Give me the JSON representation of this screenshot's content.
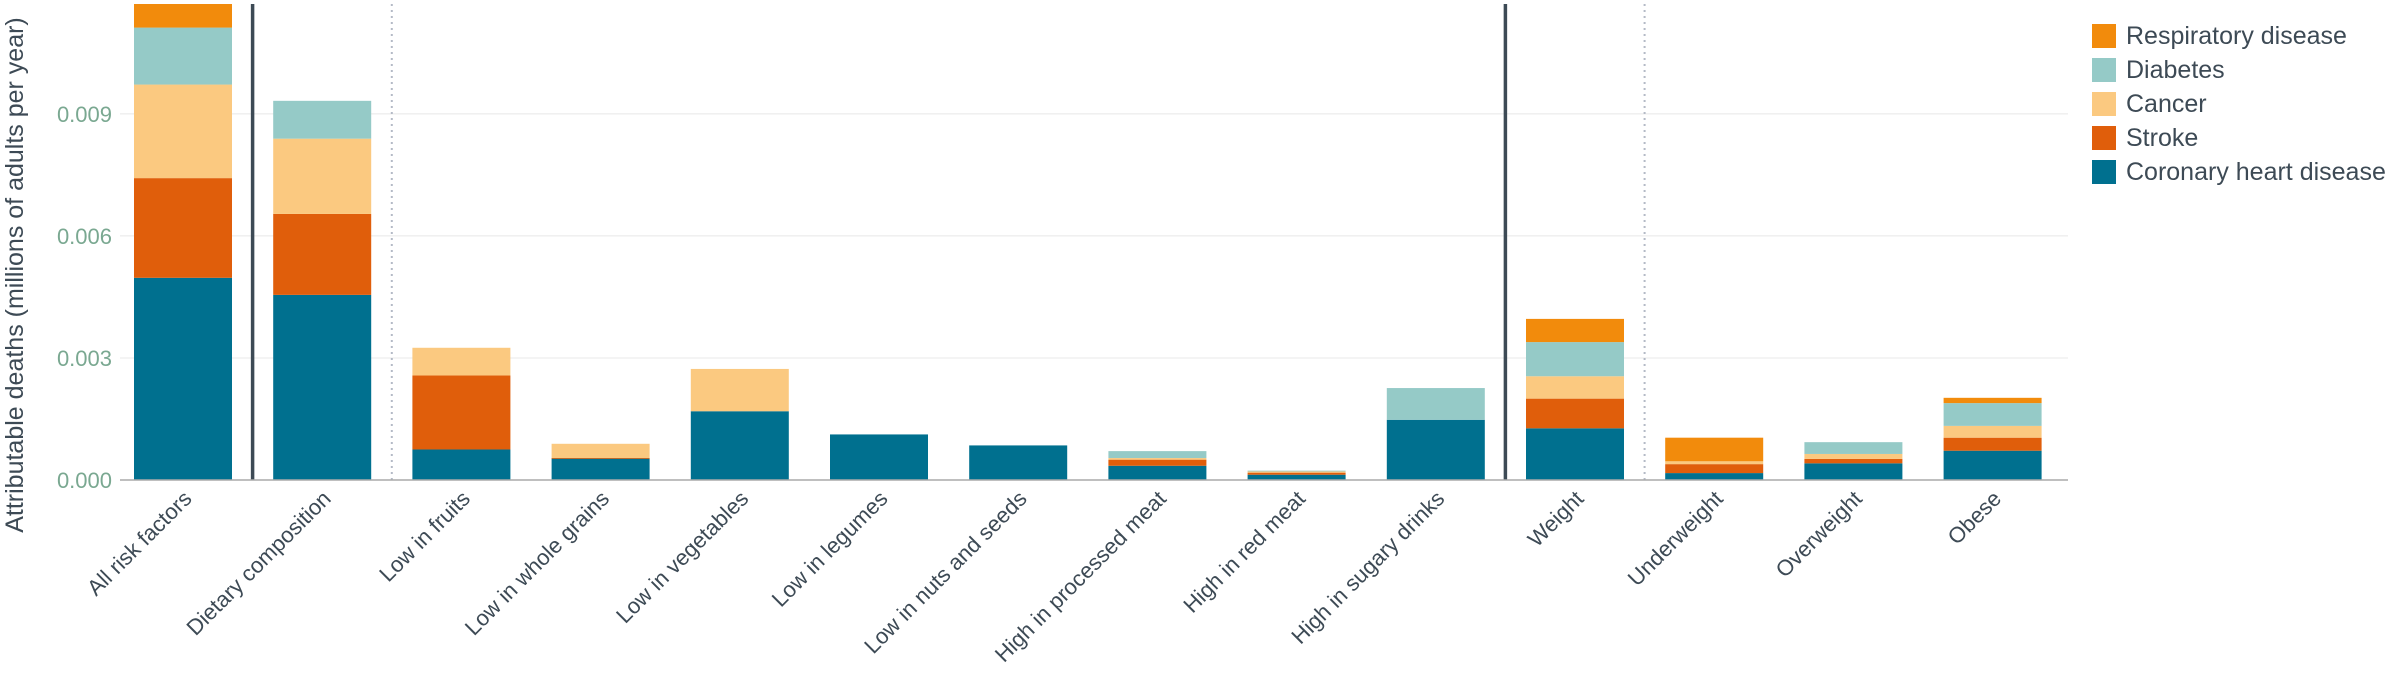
{
  "chart_data": {
    "type": "bar",
    "stacked": true,
    "title": "",
    "xlabel": "",
    "ylabel": "Attributable deaths (millions of adults per year)",
    "ylim": [
      0,
      0.0117
    ],
    "yticks": [
      "0.000",
      "0.003",
      "0.006",
      "0.009"
    ],
    "ytick_values": [
      0,
      0.003,
      0.006,
      0.009
    ],
    "grid": true,
    "legend_position": "top-right",
    "categories": [
      "All risk factors",
      "Dietary composition",
      "Low in fruits",
      "Low in whole grains",
      "Low in vegetables",
      "Low in legumes",
      "Low in nuts and seeds",
      "High in processed meat",
      "High in red meat",
      "High in sugary drinks",
      "Weight",
      "Underweight",
      "Overweight",
      "Obese"
    ],
    "separators": [
      {
        "after_index": 0,
        "style": "solid"
      },
      {
        "after_index": 1,
        "style": "dotted"
      },
      {
        "after_index": 9,
        "style": "solid"
      },
      {
        "after_index": 10,
        "style": "dotted"
      }
    ],
    "series": [
      {
        "name": "Coronary heart disease",
        "color": "#00708f",
        "values": [
          0.00497,
          0.00455,
          0.00075,
          0.00053,
          0.00169,
          0.00112,
          0.00085,
          0.00035,
          0.00013,
          0.00148,
          0.00127,
          0.00017,
          0.00041,
          0.00072
        ]
      },
      {
        "name": "Stroke",
        "color": "#e05e0b",
        "values": [
          0.00245,
          0.00199,
          0.00182,
          1e-05,
          0.0,
          0.0,
          0.0,
          0.00015,
          5e-05,
          0.0,
          0.00073,
          0.00022,
          0.00011,
          0.00032
        ]
      },
      {
        "name": "Cancer",
        "color": "#fbc980",
        "values": [
          0.0023,
          0.00185,
          0.00068,
          0.00035,
          0.00104,
          0.0,
          0.0,
          4e-05,
          3e-05,
          0.0,
          0.00055,
          7e-05,
          0.00012,
          0.00029
        ]
      },
      {
        "name": "Diabetes",
        "color": "#95cac7",
        "values": [
          0.0014,
          0.00093,
          0.0,
          0.0,
          0.0,
          0.0,
          0.0,
          0.00017,
          2e-05,
          0.00078,
          0.00084,
          0.0,
          0.00029,
          0.00056
        ]
      },
      {
        "name": "Respiratory disease",
        "color": "#f28b0c",
        "values": [
          0.00058,
          0.0,
          0.0,
          0.0,
          0.0,
          0.0,
          0.0,
          0.0,
          0.0,
          0.0,
          0.00057,
          0.00058,
          0.0,
          0.00013
        ]
      }
    ],
    "legend_order": [
      "Respiratory disease",
      "Diabetes",
      "Cancer",
      "Stroke",
      "Coronary heart disease"
    ]
  }
}
